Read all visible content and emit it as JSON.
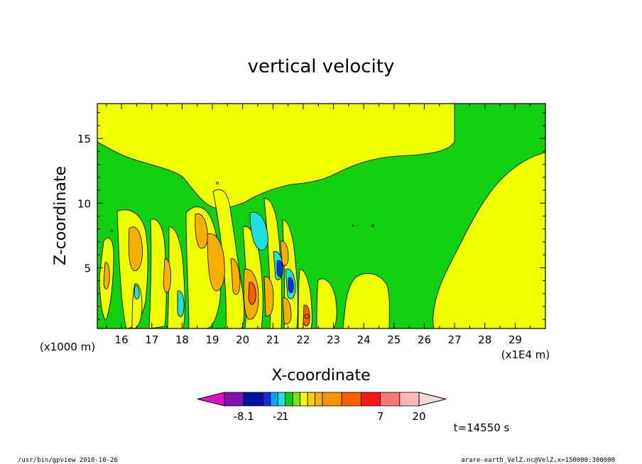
{
  "chart_data": {
    "type": "contour",
    "title": "vertical velocity",
    "xlabel": "X-coordinate",
    "ylabel": "Z-coordinate",
    "x_unit_left": "(x1000 m)",
    "x_unit_right": "(x1E4 m)",
    "x_ticks": [
      "16",
      "17",
      "18",
      "19",
      "20",
      "21",
      "22",
      "23",
      "24",
      "25",
      "26",
      "27",
      "28",
      "29"
    ],
    "y_ticks": [
      "5",
      "10",
      "15"
    ],
    "xlim": [
      15.2,
      30.0
    ],
    "ylim": [
      0.3,
      17.7
    ],
    "colorbar": {
      "labels": [
        {
          "text": "-8.1",
          "index": 1
        },
        {
          "text": "-2",
          "index": 4
        },
        {
          "text": "1",
          "index": 5
        },
        {
          "text": "7",
          "index": 13
        },
        {
          "text": "20",
          "index": 16
        }
      ],
      "colors": [
        "#e010c0",
        "#8010b0",
        "#0010a0",
        "#1030e0",
        "#10a0ff",
        "#20e0e0",
        "#10d010",
        "#80e000",
        "#f0ff00",
        "#f8d000",
        "#f8b000",
        "#f89000",
        "#f86000",
        "#f81818",
        "#f87878",
        "#f8b8b8",
        "#f8d8d8"
      ]
    },
    "time_label": "t=14550 s",
    "field_colors": {
      "background": "#10d010",
      "positive_weak": "#f0ff00",
      "positive_mid": "#f8b000",
      "positive_strong": "#f86000",
      "negative_weak": "#20e0e0",
      "negative_strong": "#1030e0"
    }
  },
  "footer": {
    "left": "/usr/bin/gpview  2010-10-26",
    "right": "arare-earth_VelZ.nc@VelZ,x=150000:300000"
  }
}
